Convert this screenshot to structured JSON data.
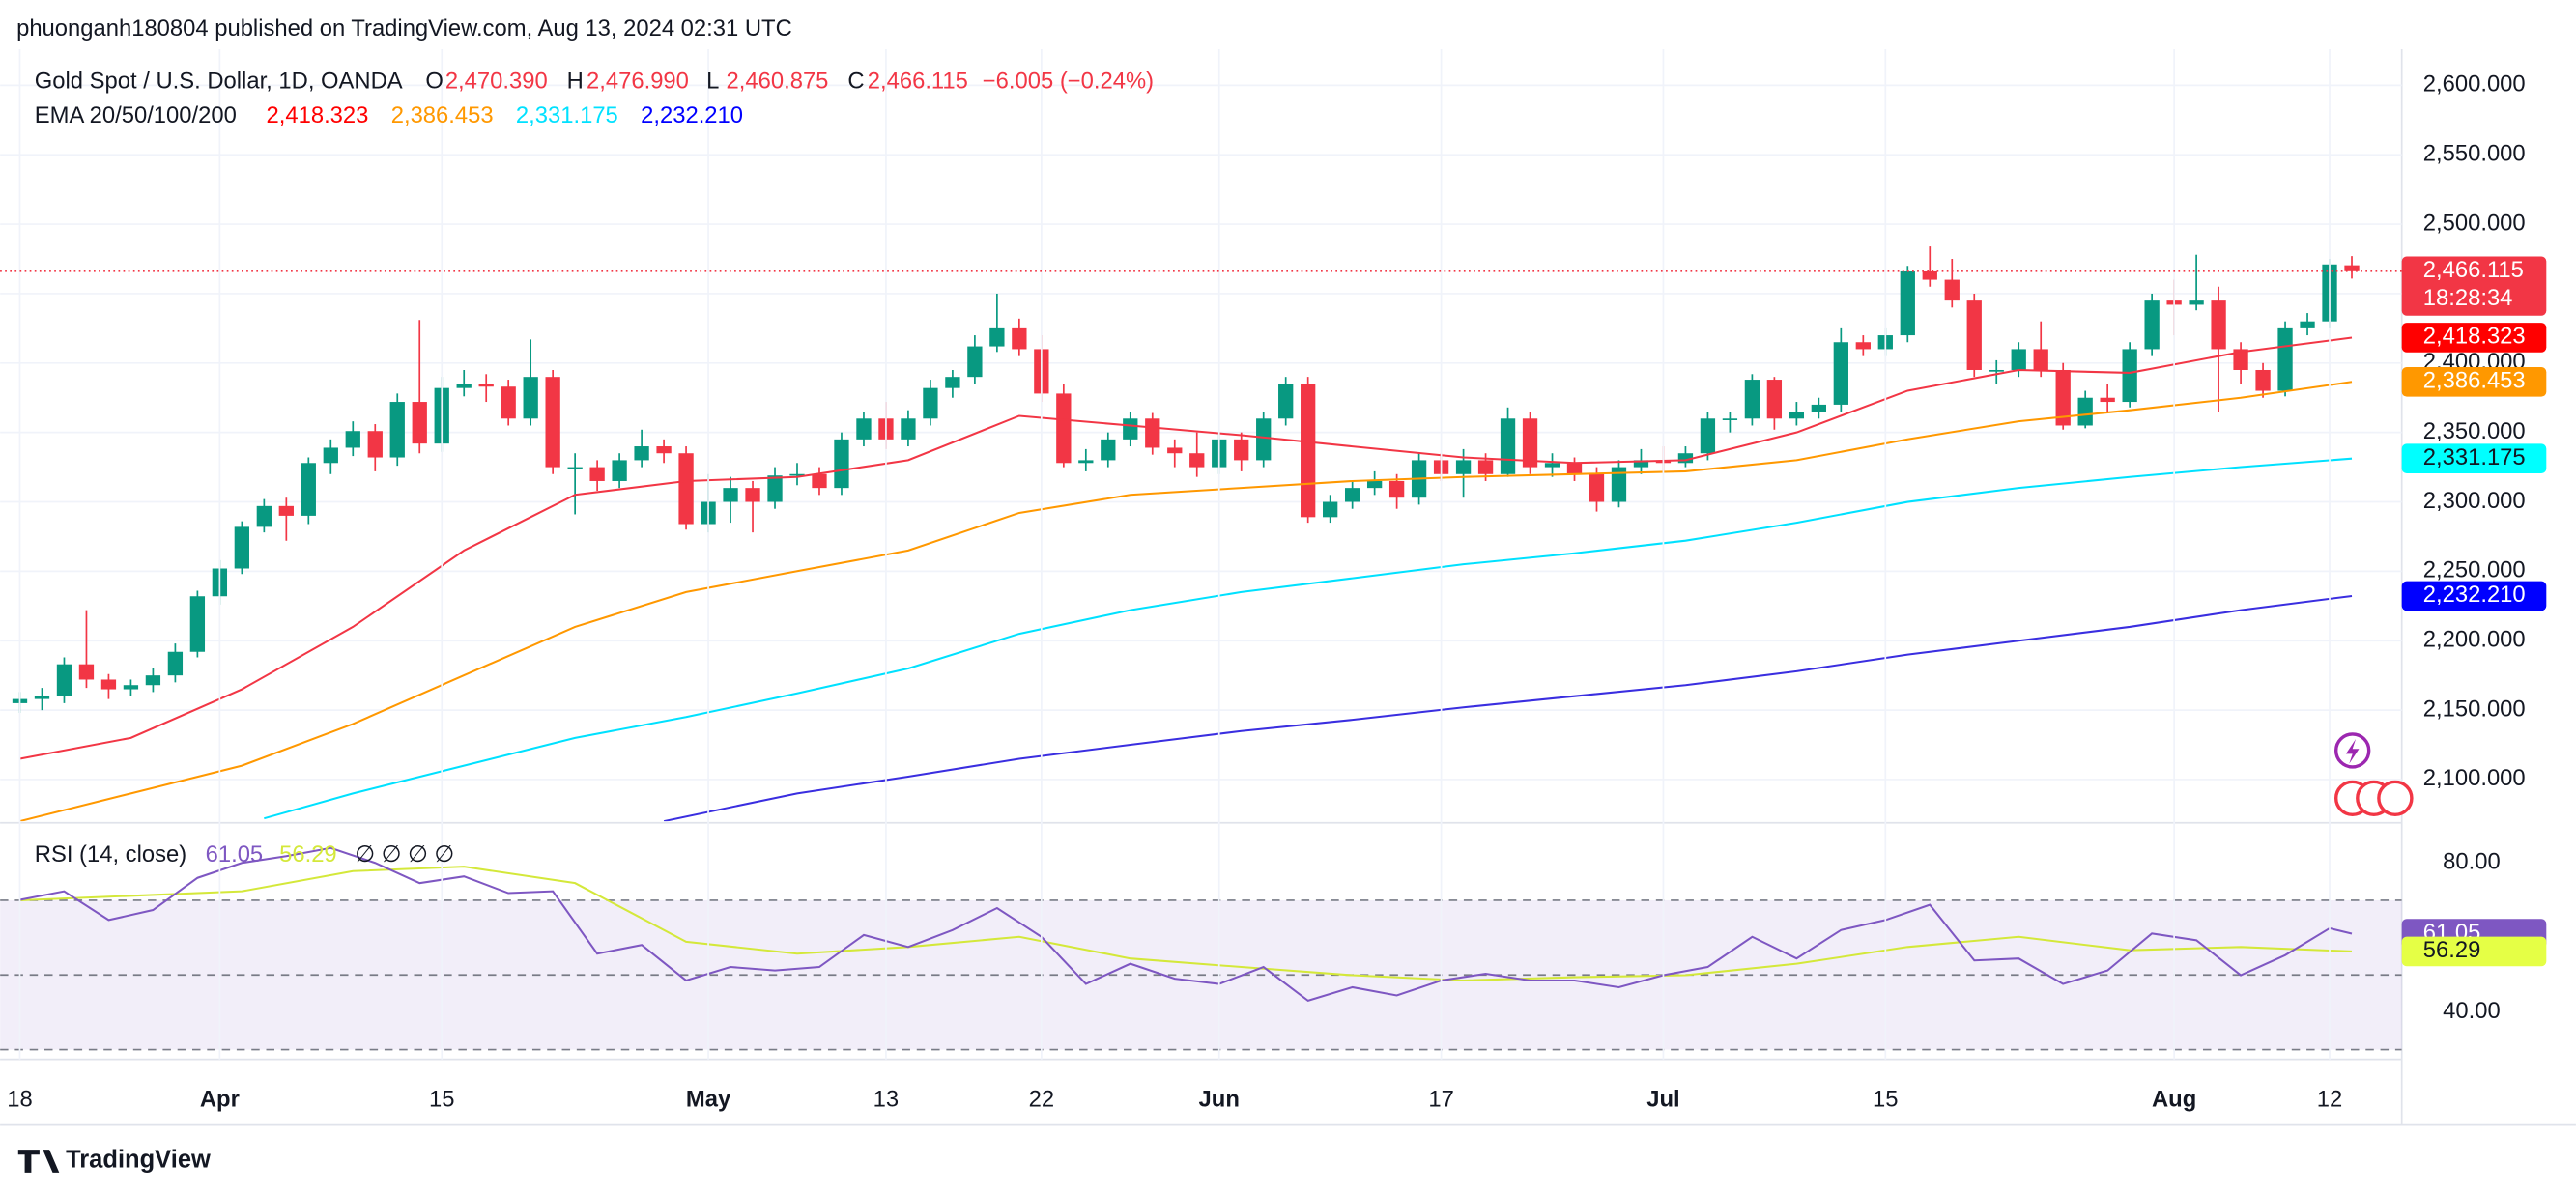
{
  "header": {
    "text": "phuonganh180804 published on TradingView.com, Aug 13, 2024 02:31 UTC"
  },
  "footer": {
    "brand": "TradingView"
  },
  "chart_data": [
    {
      "type": "candlestick",
      "legend": {
        "symbol": "Gold Spot / U.S. Dollar, 1D, OANDA",
        "open_key": "O",
        "open": "2,470.390",
        "high_key": "H",
        "high": "2,476.990",
        "low_key": "L",
        "low": "2,460.875",
        "close_key": "C",
        "close": "2,466.115",
        "change": "−6.005 (−0.24%)",
        "ema_title": "EMA 20/50/100/200",
        "countdown": "18:28:34"
      },
      "categories": [
        "18",
        null,
        null,
        null,
        null,
        null,
        null,
        null,
        null,
        "Apr",
        null,
        null,
        null,
        null,
        null,
        null,
        null,
        null,
        null,
        "15",
        null,
        null,
        null,
        null,
        null,
        null,
        null,
        null,
        null,
        null,
        null,
        "May",
        null,
        null,
        null,
        null,
        null,
        null,
        null,
        "13",
        null,
        null,
        null,
        null,
        null,
        null,
        "22",
        null,
        null,
        null,
        null,
        null,
        null,
        null,
        "Jun",
        null,
        null,
        null,
        null,
        null,
        null,
        null,
        null,
        null,
        "17",
        null,
        null,
        null,
        null,
        null,
        null,
        null,
        null,
        null,
        "Jul",
        null,
        null,
        null,
        null,
        null,
        null,
        null,
        null,
        null,
        "15",
        null,
        null,
        null,
        null,
        null,
        null,
        null,
        null,
        null,
        null,
        null,
        null,
        "Aug",
        null,
        null,
        null,
        null,
        null,
        null,
        "12",
        null
      ],
      "open": [
        2155,
        2158,
        2160,
        2183,
        2172,
        2165,
        2168,
        2175,
        2192,
        2232,
        2252,
        2282,
        2297,
        2290,
        2328,
        2339,
        2351,
        2332,
        2372,
        2342,
        2382,
        2385,
        2383,
        2360,
        2390,
        2325,
        2325,
        2315,
        2330,
        2340,
        2335,
        2284,
        2300,
        2310,
        2300,
        2319,
        2320,
        2310,
        2345,
        2360,
        2345,
        2360,
        2382,
        2390,
        2412,
        2425,
        2410,
        2378,
        2328,
        2330,
        2345,
        2360,
        2339,
        2335,
        2325,
        2345,
        2330,
        2360,
        2385,
        2289,
        2300,
        2310,
        2315,
        2303,
        2330,
        2320,
        2330,
        2320,
        2360,
        2325,
        2328,
        2320,
        2300,
        2325,
        2330,
        2328,
        2335,
        2360,
        2360,
        2388,
        2360,
        2365,
        2370,
        2415,
        2410,
        2420,
        2466,
        2460,
        2445,
        2395,
        2395,
        2410,
        2395,
        2355,
        2375,
        2372,
        2410,
        2445,
        2442,
        2445,
        2410,
        2395,
        2380,
        2425,
        2430,
        2470.39
      ],
      "high": [
        2163,
        2166,
        2188,
        2222,
        2176,
        2172,
        2180,
        2198,
        2236,
        2258,
        2286,
        2302,
        2303,
        2332,
        2345,
        2358,
        2356,
        2378,
        2431,
        2390,
        2395,
        2392,
        2388,
        2417,
        2395,
        2335,
        2330,
        2335,
        2352,
        2345,
        2340,
        2320,
        2318,
        2315,
        2325,
        2328,
        2325,
        2350,
        2365,
        2372,
        2366,
        2388,
        2395,
        2420,
        2450,
        2432,
        2420,
        2385,
        2338,
        2350,
        2365,
        2364,
        2345,
        2350,
        2350,
        2350,
        2365,
        2390,
        2390,
        2305,
        2315,
        2322,
        2320,
        2335,
        2335,
        2338,
        2335,
        2368,
        2365,
        2335,
        2332,
        2325,
        2330,
        2338,
        2340,
        2340,
        2365,
        2365,
        2392,
        2390,
        2372,
        2375,
        2425,
        2420,
        2425,
        2470,
        2484,
        2475,
        2450,
        2402,
        2415,
        2430,
        2400,
        2380,
        2385,
        2415,
        2450,
        2460,
        2478,
        2455,
        2415,
        2400,
        2430,
        2436,
        2475,
        2476.99
      ],
      "low": [
        2148,
        2150,
        2155,
        2166,
        2158,
        2160,
        2163,
        2170,
        2188,
        2226,
        2248,
        2278,
        2272,
        2284,
        2320,
        2333,
        2322,
        2326,
        2335,
        2336,
        2376,
        2372,
        2355,
        2355,
        2320,
        2291,
        2308,
        2310,
        2325,
        2328,
        2280,
        2278,
        2285,
        2278,
        2295,
        2312,
        2305,
        2305,
        2340,
        2338,
        2340,
        2355,
        2375,
        2385,
        2408,
        2405,
        2372,
        2325,
        2322,
        2325,
        2340,
        2334,
        2325,
        2318,
        2320,
        2322,
        2325,
        2355,
        2285,
        2285,
        2295,
        2305,
        2295,
        2298,
        2315,
        2303,
        2315,
        2318,
        2320,
        2318,
        2315,
        2293,
        2296,
        2320,
        2322,
        2325,
        2330,
        2350,
        2355,
        2352,
        2355,
        2360,
        2365,
        2405,
        2405,
        2415,
        2455,
        2440,
        2390,
        2385,
        2390,
        2390,
        2352,
        2353,
        2365,
        2368,
        2405,
        2420,
        2438,
        2365,
        2385,
        2375,
        2376,
        2420,
        2425,
        2460.875
      ],
      "close": [
        2158,
        2160,
        2183,
        2172,
        2165,
        2168,
        2175,
        2192,
        2232,
        2252,
        2282,
        2297,
        2290,
        2328,
        2339,
        2351,
        2332,
        2372,
        2342,
        2382,
        2385,
        2383,
        2360,
        2390,
        2325,
        2325,
        2315,
        2330,
        2340,
        2335,
        2284,
        2300,
        2310,
        2300,
        2319,
        2320,
        2310,
        2345,
        2360,
        2345,
        2360,
        2382,
        2390,
        2412,
        2425,
        2410,
        2378,
        2328,
        2330,
        2345,
        2360,
        2339,
        2335,
        2325,
        2345,
        2330,
        2360,
        2385,
        2289,
        2300,
        2310,
        2315,
        2303,
        2330,
        2320,
        2330,
        2320,
        2360,
        2325,
        2328,
        2320,
        2300,
        2325,
        2330,
        2328,
        2335,
        2360,
        2360,
        2388,
        2360,
        2365,
        2370,
        2415,
        2410,
        2420,
        2466,
        2460,
        2445,
        2395,
        2395,
        2410,
        2395,
        2355,
        2375,
        2372,
        2410,
        2445,
        2442,
        2445,
        2410,
        2395,
        2380,
        2425,
        2430,
        2471,
        2466.115
      ],
      "up_color": "#089981",
      "down_color": "#f23645",
      "series": [
        {
          "name": "EMA 20",
          "color": "#f23645",
          "box_color": "#ff0000",
          "x": [
            0,
            5,
            10,
            15,
            20,
            25,
            30,
            35,
            40,
            45,
            50,
            55,
            60,
            65,
            70,
            75,
            80,
            85,
            90,
            95,
            100,
            105
          ],
          "values": [
            2115,
            2130,
            2165,
            2210,
            2265,
            2305,
            2315,
            2318,
            2330,
            2362,
            2355,
            2348,
            2340,
            2332,
            2328,
            2330,
            2350,
            2380,
            2395,
            2393,
            2408,
            2418.323
          ],
          "value_labels": [
            null,
            null,
            null,
            null,
            null,
            null,
            null,
            null,
            null,
            null,
            null,
            null,
            null,
            null,
            null,
            null,
            null,
            null,
            null,
            null,
            null,
            "2,418.323"
          ]
        },
        {
          "name": "EMA 50",
          "color": "#ff9800",
          "box_color": "#ff9800",
          "x": [
            0,
            5,
            10,
            15,
            20,
            25,
            30,
            35,
            40,
            45,
            50,
            55,
            60,
            65,
            70,
            75,
            80,
            85,
            90,
            95,
            100,
            105
          ],
          "values": [
            2070,
            2090,
            2110,
            2140,
            2175,
            2210,
            2235,
            2250,
            2265,
            2292,
            2305,
            2310,
            2315,
            2318,
            2320,
            2322,
            2330,
            2345,
            2358,
            2366,
            2375,
            2386.453
          ],
          "value_labels": [
            null,
            null,
            null,
            null,
            null,
            null,
            null,
            null,
            null,
            null,
            null,
            null,
            null,
            null,
            null,
            null,
            null,
            null,
            null,
            null,
            null,
            "2,386.453"
          ]
        },
        {
          "name": "EMA 100",
          "color": "#00e1ff",
          "box_color": "#00ffff",
          "x": [
            11,
            15,
            20,
            25,
            30,
            35,
            40,
            45,
            50,
            55,
            60,
            65,
            70,
            75,
            80,
            85,
            90,
            95,
            100,
            105
          ],
          "values": [
            2072,
            2090,
            2110,
            2130,
            2145,
            2162,
            2180,
            2205,
            2222,
            2235,
            2245,
            2255,
            2263,
            2272,
            2285,
            2300,
            2310,
            2318,
            2325,
            2331.175
          ],
          "value_labels": [
            null,
            null,
            null,
            null,
            null,
            null,
            null,
            null,
            null,
            null,
            null,
            null,
            null,
            null,
            null,
            null,
            null,
            null,
            null,
            "2,331.175"
          ]
        },
        {
          "name": "EMA 200",
          "color": "#3a2ee0",
          "box_color": "#0000ff",
          "x": [
            29,
            35,
            40,
            45,
            50,
            55,
            60,
            65,
            70,
            75,
            80,
            85,
            90,
            95,
            100,
            105
          ],
          "values": [
            2070,
            2090,
            2102,
            2115,
            2125,
            2135,
            2143,
            2152,
            2160,
            2168,
            2178,
            2190,
            2200,
            2210,
            2222,
            2232.21
          ],
          "value_labels": [
            null,
            null,
            null,
            null,
            null,
            null,
            null,
            null,
            null,
            null,
            null,
            null,
            null,
            null,
            null,
            "2,232.210"
          ]
        }
      ],
      "ylim": [
        2070,
        2626
      ],
      "yticks": [
        {
          "value": 2100,
          "label": "2,100.000"
        },
        {
          "value": 2150,
          "label": "2,150.000"
        },
        {
          "value": 2200,
          "label": "2,200.000"
        },
        {
          "value": 2250,
          "label": "2,250.000"
        },
        {
          "value": 2300,
          "label": "2,300.000"
        },
        {
          "value": 2350,
          "label": "2,350.000"
        },
        {
          "value": 2400,
          "label": "2,400.000"
        },
        {
          "value": 2450,
          "label": "2,450.000"
        },
        {
          "value": 2500,
          "label": "2,500.000"
        },
        {
          "value": 2550,
          "label": "2,550.000"
        },
        {
          "value": 2600,
          "label": "2,600.000"
        }
      ],
      "grid": true
    },
    {
      "type": "line",
      "title": "RSI (14, close)",
      "markers": "∅ ∅ ∅ ∅",
      "series": [
        {
          "name": "RSI",
          "color": "#7e57c2",
          "x": [
            0,
            2,
            4,
            6,
            8,
            10,
            12,
            14,
            16,
            18,
            20,
            22,
            24,
            26,
            28,
            30,
            32,
            34,
            36,
            38,
            40,
            42,
            44,
            46,
            48,
            50,
            52,
            54,
            56,
            58,
            60,
            62,
            64,
            66,
            68,
            70,
            72,
            74,
            76,
            78,
            80,
            82,
            84,
            86,
            88,
            90,
            92,
            94,
            96,
            98,
            100,
            102,
            104,
            105
          ],
          "values": [
            70.1,
            72.4,
            64.7,
            67.4,
            76.0,
            80.0,
            81.8,
            84.0,
            80.0,
            74.6,
            76.4,
            71.9,
            72.4,
            55.7,
            58.0,
            48.5,
            52.1,
            51.2,
            52.1,
            60.7,
            57.5,
            62.0,
            67.9,
            60.2,
            47.6,
            53.0,
            49.0,
            47.6,
            52.1,
            43.1,
            46.7,
            44.5,
            48.5,
            50.3,
            48.5,
            48.5,
            46.7,
            49.9,
            52.1,
            60.2,
            54.4,
            62.0,
            64.7,
            68.8,
            53.9,
            54.4,
            47.6,
            51.2,
            61.1,
            59.3,
            49.9,
            55.3,
            62.5,
            61.05
          ]
        },
        {
          "name": "RSI-based MA",
          "color": "#d4e83a",
          "box_color": "#e5ff45",
          "x": [
            0,
            10,
            15,
            20,
            25,
            30,
            35,
            40,
            45,
            50,
            55,
            60,
            65,
            70,
            75,
            80,
            85,
            90,
            95,
            100,
            105
          ],
          "values": [
            70,
            72.4,
            77.8,
            79,
            74.6,
            58.9,
            55.7,
            57.5,
            60.2,
            54.4,
            52.1,
            49.9,
            48.5,
            49.4,
            49.9,
            53,
            57.5,
            60.2,
            56.6,
            57.5,
            56.29
          ]
        }
      ],
      "levels": [
        70,
        50,
        30
      ],
      "ylim": [
        27.4,
        90.3
      ],
      "yticks": [
        {
          "value": 40,
          "label": "40.00"
        },
        {
          "value": 80,
          "label": "80.00"
        }
      ]
    }
  ]
}
